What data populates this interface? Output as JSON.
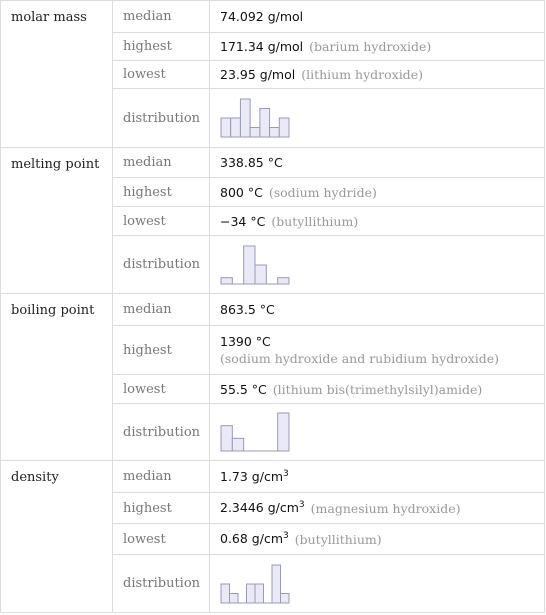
{
  "properties": [
    {
      "name": "molar mass",
      "rows": [
        {
          "label": "median",
          "value": "74.092 g/mol"
        },
        {
          "label": "highest",
          "value": "171.34 g/mol",
          "note": "(barium hydroxide)"
        },
        {
          "label": "lowest",
          "value": "23.95 g/mol",
          "note": "(lithium hydroxide)"
        },
        {
          "label": "distribution",
          "histogram": [
            2,
            2,
            4,
            1,
            3,
            1,
            2
          ]
        }
      ]
    },
    {
      "name": "melting point",
      "rows": [
        {
          "label": "median",
          "value": "338.85 °C"
        },
        {
          "label": "highest",
          "value": "800 °C",
          "note": "(sodium hydride)"
        },
        {
          "label": "lowest",
          "value": "−34 °C",
          "note": "(butyllithium)"
        },
        {
          "label": "distribution",
          "histogram": [
            1,
            0,
            6,
            3,
            0,
            1
          ]
        }
      ]
    },
    {
      "name": "boiling point",
      "rows": [
        {
          "label": "median",
          "value": "863.5 °C"
        },
        {
          "label": "highest",
          "value": "1390 °C",
          "note": "(sodium hydroxide and rubidium hydroxide)"
        },
        {
          "label": "lowest",
          "value": "55.5 °C",
          "note": "(lithium bis(trimethylsilyl)amide)"
        },
        {
          "label": "distribution",
          "histogram": [
            2,
            1,
            0,
            0,
            0,
            3
          ]
        }
      ]
    },
    {
      "name": "density",
      "rows": [
        {
          "label": "median",
          "value": "1.73 g/cm",
          "sup": "3"
        },
        {
          "label": "highest",
          "value": "2.3446 g/cm",
          "sup": "3",
          "note": "(magnesium hydroxide)"
        },
        {
          "label": "lowest",
          "value": "0.68 g/cm",
          "sup": "3",
          "note": "(butyllithium)"
        },
        {
          "label": "distribution",
          "histogram": [
            2,
            1,
            0,
            2,
            2,
            0,
            4,
            1
          ]
        }
      ]
    }
  ]
}
